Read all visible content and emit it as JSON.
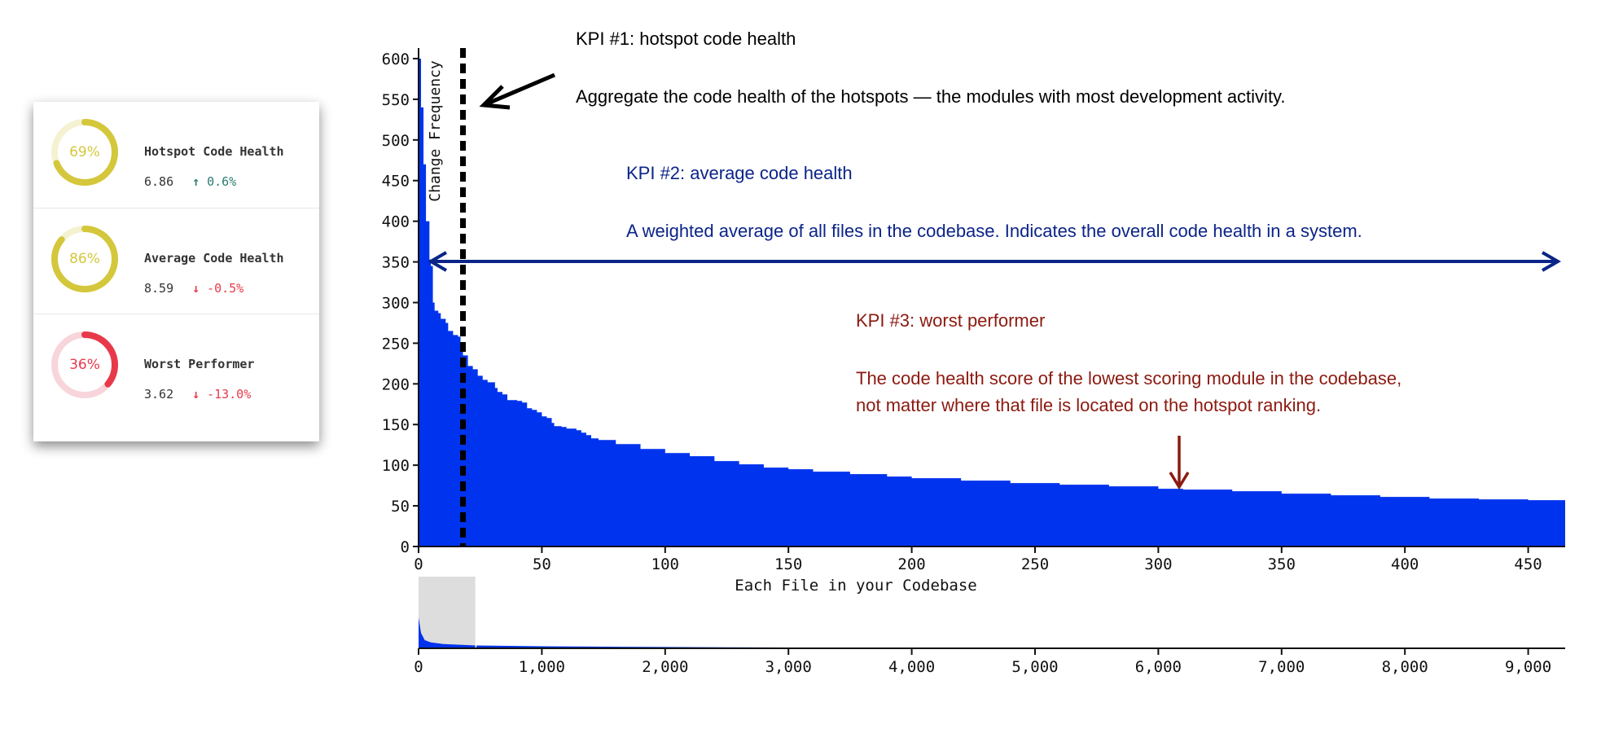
{
  "kpi_cards": [
    {
      "title": "Hotspot Code Health",
      "percent_label": "69%",
      "percent": 69,
      "value": "6.86",
      "delta": "0.6%",
      "trend": "up",
      "ring_color": "#d4c73c",
      "track_color": "#f5f2d2",
      "delta_color": "#2a7d6e"
    },
    {
      "title": "Average Code Health",
      "percent_label": "86%",
      "percent": 86,
      "value": "8.59",
      "delta": "-0.5%",
      "trend": "down",
      "ring_color": "#d4c73c",
      "track_color": "#f5f2d2",
      "delta_color": "#e8394a"
    },
    {
      "title": "Worst Performer",
      "percent_label": "36%",
      "percent": 36,
      "value": "3.62",
      "delta": "-13.0%",
      "trend": "down",
      "ring_color": "#e8394a",
      "track_color": "#f8d5db",
      "delta_color": "#e8394a"
    }
  ],
  "icons": {
    "up": "arrow-up-icon",
    "down": "arrow-down-icon"
  },
  "annotations": {
    "kpi1_title": "KPI #1: hotspot code health",
    "kpi1_text": "Aggregate the code health of the hotspots — the modules with most development activity.",
    "kpi2_title": "KPI #2: average code health",
    "kpi2_text": "A weighted average of all files in the codebase. Indicates the overall code health in a system.",
    "kpi3_title": "KPI #3: worst performer",
    "kpi3_text_1": "The code health score of the lowest scoring module in the codebase,",
    "kpi3_text_2": "not matter where that file is located on the hotspot ranking.",
    "colors": {
      "kpi1": "#000000",
      "kpi2": "#0b2488",
      "kpi3": "#8b1a10"
    }
  },
  "chart_data": [
    {
      "type": "area",
      "xlabel": "Each File in your Codebase",
      "ylabel": "Change Frequency",
      "xlim": [
        0,
        465
      ],
      "ylim": [
        0,
        613
      ],
      "xticks": [
        0,
        50,
        100,
        150,
        200,
        250,
        300,
        350,
        400,
        450
      ],
      "yticks": [
        0,
        50,
        100,
        150,
        200,
        250,
        300,
        350,
        400,
        450,
        500,
        550,
        600
      ],
      "color": "#0033ee",
      "hotspot_threshold_x": 18,
      "worst_performer_x": 306,
      "x": [
        0,
        1,
        2,
        3,
        4.4,
        5,
        5.8,
        6.5,
        8,
        9,
        11,
        12,
        14,
        16,
        17,
        18,
        20,
        22,
        24,
        26,
        28,
        30,
        31,
        32,
        34,
        36,
        40,
        42,
        44,
        46,
        48,
        50,
        52,
        54,
        55,
        58,
        60,
        64,
        66,
        68,
        70,
        73,
        80,
        90,
        100,
        110,
        120,
        130,
        140,
        150,
        160,
        175,
        190,
        200,
        220,
        240,
        260,
        280,
        300,
        310,
        330,
        350,
        370,
        390,
        410,
        430,
        450,
        465
      ],
      "y": [
        600,
        540,
        470,
        400,
        353,
        345,
        300,
        290,
        287,
        280,
        275,
        265,
        260,
        258,
        245,
        235,
        222,
        218,
        210,
        205,
        202,
        202,
        195,
        190,
        187,
        180,
        179,
        177,
        170,
        168,
        165,
        160,
        158,
        152,
        148,
        147,
        145,
        143,
        140,
        137,
        133,
        131,
        126,
        120,
        115,
        111,
        105,
        101,
        97,
        95,
        92,
        89,
        86,
        84,
        81,
        78,
        76,
        74,
        71,
        70,
        68,
        65,
        63,
        61,
        59,
        58,
        57,
        56
      ],
      "grid": false
    },
    {
      "type": "area",
      "role": "overview-brush",
      "xlim": [
        0,
        9300
      ],
      "ylim": [
        0,
        1400
      ],
      "xticks": [
        0,
        1000,
        2000,
        3000,
        4000,
        5000,
        6000,
        7000,
        8000,
        9000
      ],
      "xtick_labels": [
        "0",
        "1,000",
        "2,000",
        "3,000",
        "4,000",
        "5,000",
        "6,000",
        "7,000",
        "8,000",
        "9,000"
      ],
      "brush_range": [
        0,
        465
      ],
      "color": "#0033ee",
      "brush_color": "#dddddd",
      "x": [
        0,
        20,
        50,
        100,
        200,
        460,
        1000,
        2000,
        3000,
        4000,
        5000,
        6000,
        7000,
        8000,
        9300
      ],
      "y": [
        600,
        300,
        160,
        115,
        84,
        56,
        40,
        25,
        15,
        10,
        7,
        5,
        3,
        2,
        1
      ]
    }
  ]
}
